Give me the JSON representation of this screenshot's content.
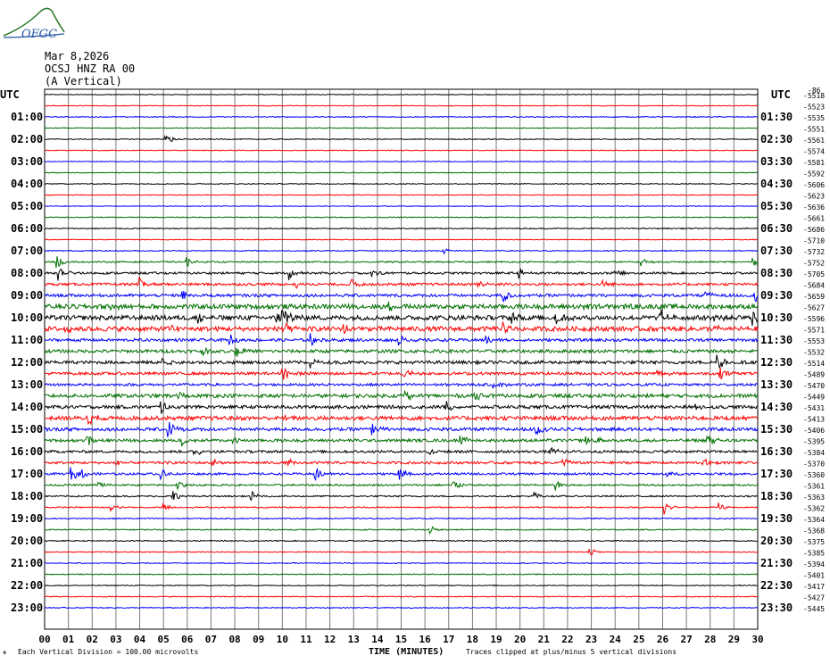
{
  "header": {
    "logo_text": "OFGC",
    "date": "Mar 8,2026",
    "station": "OCSJ HNZ RA 00",
    "component": "(A Vertical)"
  },
  "axes": {
    "left_utc": "UTC",
    "right_utc": "UTC",
    "xlabel": "TIME (MINUTES)",
    "footnote_left": "Each Vertical Division =  100.00 microvolts",
    "footnote_right": "Traces clipped at plus/minus 5 vertical divisions",
    "corner_mark": "⚘"
  },
  "colors": {
    "cycle": [
      "#000000",
      "#ff0000",
      "#0000ff",
      "#007000"
    ],
    "grid": "#7a7a7a"
  },
  "chart_data": {
    "type": "seismogram",
    "x_ticks": [
      "00",
      "01",
      "02",
      "03",
      "04",
      "05",
      "06",
      "07",
      "08",
      "09",
      "10",
      "11",
      "12",
      "13",
      "14",
      "15",
      "16",
      "17",
      "18",
      "19",
      "20",
      "21",
      "22",
      "23",
      "24",
      "25",
      "26",
      "27",
      "28",
      "29",
      "30"
    ],
    "xlim": [
      0,
      30
    ],
    "left_labels": [
      "01:00",
      "02:00",
      "03:00",
      "04:00",
      "05:00",
      "06:00",
      "07:00",
      "08:00",
      "09:00",
      "10:00",
      "11:00",
      "12:00",
      "13:00",
      "14:00",
      "15:00",
      "16:00",
      "17:00",
      "18:00",
      "19:00",
      "20:00",
      "21:00",
      "22:00",
      "23:00"
    ],
    "right_labels": [
      "01:30",
      "02:30",
      "03:30",
      "04:30",
      "05:30",
      "06:30",
      "07:30",
      "08:30",
      "09:30",
      "10:30",
      "11:30",
      "12:30",
      "13:30",
      "14:30",
      "15:30",
      "16:30",
      "17:30",
      "18:30",
      "19:30",
      "20:30",
      "21:30",
      "22:30",
      "23:30"
    ],
    "offsets": [
      "-5518",
      "-5523",
      "-5535",
      "-5551",
      "-5561",
      "-5574",
      "-5581",
      "-5592",
      "-5606",
      "-5623",
      "-5636",
      "-5661",
      "-5686",
      "-5710",
      "-5732",
      "-5752",
      "-5705",
      "-5684",
      "-5659",
      "-5627",
      "-5596",
      "-5571",
      "-5553",
      "-5532",
      "-5514",
      "-5489",
      "-5470",
      "-5449",
      "-5431",
      "-5413",
      "-5406",
      "-5395",
      "-5384",
      "-5370",
      "-5360",
      "-5361",
      "-5363",
      "-5362",
      "-5364",
      "-5368",
      "-5375",
      "-5385",
      "-5394",
      "-5401",
      "-5417",
      "-5427",
      "-5445"
    ],
    "top_right_mark": "-86",
    "trace_count": 47,
    "noise_level": [
      0.4,
      0.4,
      0.5,
      0.4,
      0.5,
      0.4,
      0.4,
      0.4,
      0.5,
      0.4,
      0.4,
      0.5,
      0.6,
      0.4,
      0.6,
      0.8,
      1.2,
      1.4,
      1.6,
      2.6,
      2.6,
      2.6,
      1.6,
      1.8,
      1.8,
      1.6,
      1.4,
      2.0,
      1.8,
      2.2,
      1.8,
      1.6,
      1.4,
      1.4,
      1.2,
      1.0,
      0.8,
      0.7,
      0.6,
      0.6,
      0.6,
      0.5,
      0.5,
      0.5,
      0.5,
      0.5,
      0.5
    ],
    "events": [
      {
        "trace": 4,
        "minute": 5.1,
        "amp": 8
      },
      {
        "trace": 14,
        "minute": 16.8,
        "amp": -3
      },
      {
        "trace": 15,
        "minute": 0.5,
        "amp": 8
      },
      {
        "trace": 15,
        "minute": 6.0,
        "amp": 5
      },
      {
        "trace": 15,
        "minute": 25.1,
        "amp": 6
      },
      {
        "trace": 15,
        "minute": 29.8,
        "amp": 4
      },
      {
        "trace": 16,
        "minute": 0.6,
        "amp": 8
      },
      {
        "trace": 16,
        "minute": 10.3,
        "amp": 7
      },
      {
        "trace": 16,
        "minute": 13.8,
        "amp": 6
      },
      {
        "trace": 16,
        "minute": 20.0,
        "amp": 5
      },
      {
        "trace": 16,
        "minute": 24.0,
        "amp": 4
      },
      {
        "trace": 17,
        "minute": 4.0,
        "amp": 7
      },
      {
        "trace": 17,
        "minute": 10.6,
        "amp": 6
      },
      {
        "trace": 17,
        "minute": 12.9,
        "amp": 6
      },
      {
        "trace": 17,
        "minute": 18.2,
        "amp": 6
      },
      {
        "trace": 17,
        "minute": 23.5,
        "amp": 5
      },
      {
        "trace": 18,
        "minute": 5.8,
        "amp": 6
      },
      {
        "trace": 18,
        "minute": 19.3,
        "amp": 9
      },
      {
        "trace": 18,
        "minute": 27.8,
        "amp": 5
      },
      {
        "trace": 18,
        "minute": 29.9,
        "amp": 7
      },
      {
        "trace": 19,
        "minute": 2.7,
        "amp": 6
      },
      {
        "trace": 19,
        "minute": 14.5,
        "amp": 6
      },
      {
        "trace": 19,
        "minute": 22.7,
        "amp": 7
      },
      {
        "trace": 19,
        "minute": 24.2,
        "amp": 6
      },
      {
        "trace": 20,
        "minute": 6.5,
        "amp": 7
      },
      {
        "trace": 20,
        "minute": 9.7,
        "amp": 8
      },
      {
        "trace": 20,
        "minute": 10.0,
        "amp": 14
      },
      {
        "trace": 20,
        "minute": 19.7,
        "amp": 8
      },
      {
        "trace": 20,
        "minute": 21.5,
        "amp": 12
      },
      {
        "trace": 20,
        "minute": 25.9,
        "amp": 9
      },
      {
        "trace": 20,
        "minute": 28.2,
        "amp": 6
      },
      {
        "trace": 20,
        "minute": 29.8,
        "amp": 10
      },
      {
        "trace": 21,
        "minute": 0.8,
        "amp": 6
      },
      {
        "trace": 21,
        "minute": 5.4,
        "amp": 6
      },
      {
        "trace": 21,
        "minute": 10.0,
        "amp": 9
      },
      {
        "trace": 21,
        "minute": 12.6,
        "amp": 8
      },
      {
        "trace": 21,
        "minute": 19.3,
        "amp": 6
      },
      {
        "trace": 21,
        "minute": 28.2,
        "amp": 6
      },
      {
        "trace": 22,
        "minute": 7.8,
        "amp": 7
      },
      {
        "trace": 22,
        "minute": 11.2,
        "amp": 7
      },
      {
        "trace": 22,
        "minute": 14.9,
        "amp": 7
      },
      {
        "trace": 22,
        "minute": 18.6,
        "amp": 5
      },
      {
        "trace": 23,
        "minute": 6.6,
        "amp": 5
      },
      {
        "trace": 23,
        "minute": 8.0,
        "amp": 9
      },
      {
        "trace": 24,
        "minute": 5.0,
        "amp": 6
      },
      {
        "trace": 24,
        "minute": 11.2,
        "amp": 6
      },
      {
        "trace": 24,
        "minute": 28.3,
        "amp": 14
      },
      {
        "trace": 25,
        "minute": 10.0,
        "amp": 10
      },
      {
        "trace": 25,
        "minute": 15.1,
        "amp": 9
      },
      {
        "trace": 25,
        "minute": 25.8,
        "amp": 7
      },
      {
        "trace": 25,
        "minute": 28.4,
        "amp": 12
      },
      {
        "trace": 26,
        "minute": 18.9,
        "amp": 4
      },
      {
        "trace": 27,
        "minute": 5.6,
        "amp": 4
      },
      {
        "trace": 27,
        "minute": 15.2,
        "amp": 7
      },
      {
        "trace": 27,
        "minute": 18.1,
        "amp": 5
      },
      {
        "trace": 28,
        "minute": 4.9,
        "amp": 8
      },
      {
        "trace": 28,
        "minute": 16.9,
        "amp": 6
      },
      {
        "trace": 28,
        "minute": 27.4,
        "amp": 5
      },
      {
        "trace": 29,
        "minute": 1.8,
        "amp": 9
      },
      {
        "trace": 29,
        "minute": 10.0,
        "amp": 4
      },
      {
        "trace": 29,
        "minute": 14.6,
        "amp": 4
      },
      {
        "trace": 30,
        "minute": 5.2,
        "amp": 14
      },
      {
        "trace": 30,
        "minute": 13.8,
        "amp": 7
      },
      {
        "trace": 30,
        "minute": 20.7,
        "amp": 6
      },
      {
        "trace": 31,
        "minute": 1.8,
        "amp": 6
      },
      {
        "trace": 31,
        "minute": 5.8,
        "amp": 7
      },
      {
        "trace": 31,
        "minute": 7.9,
        "amp": 6
      },
      {
        "trace": 31,
        "minute": 17.5,
        "amp": 8
      },
      {
        "trace": 31,
        "minute": 22.8,
        "amp": 5
      },
      {
        "trace": 31,
        "minute": 23.2,
        "amp": 6
      },
      {
        "trace": 31,
        "minute": 27.9,
        "amp": 7
      },
      {
        "trace": 32,
        "minute": 6.3,
        "amp": 7
      },
      {
        "trace": 32,
        "minute": 16.2,
        "amp": 5
      },
      {
        "trace": 32,
        "minute": 21.3,
        "amp": 6
      },
      {
        "trace": 33,
        "minute": 3.0,
        "amp": 6
      },
      {
        "trace": 33,
        "minute": 7.1,
        "amp": 5
      },
      {
        "trace": 33,
        "minute": 10.2,
        "amp": 6
      },
      {
        "trace": 33,
        "minute": 21.8,
        "amp": 7
      },
      {
        "trace": 33,
        "minute": 27.7,
        "amp": 5
      },
      {
        "trace": 34,
        "minute": 1.1,
        "amp": 9
      },
      {
        "trace": 34,
        "minute": 1.6,
        "amp": 6
      },
      {
        "trace": 34,
        "minute": 4.9,
        "amp": 8
      },
      {
        "trace": 34,
        "minute": 11.4,
        "amp": 9
      },
      {
        "trace": 34,
        "minute": 14.9,
        "amp": 7
      },
      {
        "trace": 34,
        "minute": 26.2,
        "amp": 4
      },
      {
        "trace": 35,
        "minute": 2.3,
        "amp": 5
      },
      {
        "trace": 35,
        "minute": 5.6,
        "amp": 6
      },
      {
        "trace": 35,
        "minute": 17.1,
        "amp": 9
      },
      {
        "trace": 35,
        "minute": 21.5,
        "amp": 6
      },
      {
        "trace": 36,
        "minute": 5.4,
        "amp": 7
      },
      {
        "trace": 36,
        "minute": 8.7,
        "amp": 6
      },
      {
        "trace": 36,
        "minute": 20.6,
        "amp": 6
      },
      {
        "trace": 37,
        "minute": 2.8,
        "amp": 7
      },
      {
        "trace": 37,
        "minute": 5.0,
        "amp": 5
      },
      {
        "trace": 37,
        "minute": 26.1,
        "amp": 8
      },
      {
        "trace": 37,
        "minute": 28.3,
        "amp": 7
      },
      {
        "trace": 39,
        "minute": 16.2,
        "amp": 5
      },
      {
        "trace": 41,
        "minute": 22.9,
        "amp": 6
      }
    ]
  }
}
